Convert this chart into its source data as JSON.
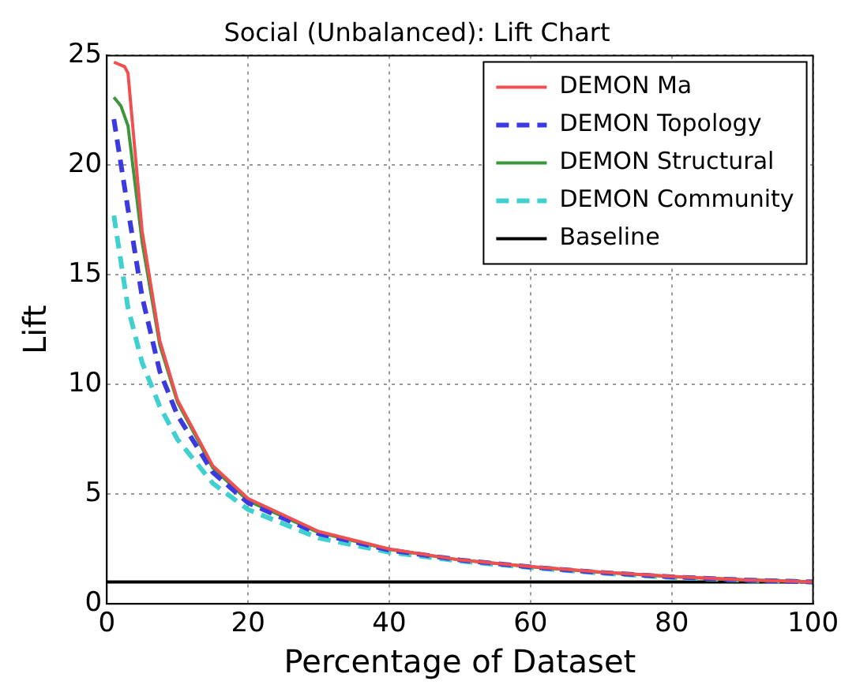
{
  "chart_data": {
    "type": "line",
    "title": "Social (Unbalanced): Lift Chart",
    "xlabel": "Percentage of Dataset",
    "ylabel": "Lift",
    "xlim": [
      0,
      100
    ],
    "xticks": [
      0,
      20,
      40,
      60,
      80,
      100
    ],
    "ylim": [
      0,
      25
    ],
    "yticks": [
      0,
      5,
      10,
      15,
      20,
      25
    ],
    "grid": true,
    "legend": "top right",
    "marker": "none",
    "series": [
      {
        "name": "DEMON Ma",
        "color": "#f05050",
        "line_style": "solid",
        "x": [
          1,
          2.5,
          3,
          5,
          7.5,
          10,
          15,
          20,
          30,
          40,
          50,
          60,
          70,
          80,
          90,
          100
        ],
        "values": [
          24.7,
          24.5,
          24.2,
          17,
          12,
          9.3,
          6.3,
          4.8,
          3.3,
          2.5,
          2.0,
          1.7,
          1.45,
          1.25,
          1.1,
          1.0
        ]
      },
      {
        "name": "DEMON Topology",
        "color": "#3a3ae0",
        "line_style": "dashed",
        "x": [
          1,
          3,
          5,
          7.5,
          10,
          15,
          20,
          30,
          40,
          50,
          60,
          70,
          80,
          90,
          100
        ],
        "values": [
          22.1,
          18,
          14,
          10.6,
          8.6,
          6.0,
          4.6,
          3.2,
          2.45,
          2.0,
          1.68,
          1.43,
          1.23,
          1.09,
          1.0
        ]
      },
      {
        "name": "DEMON Structural",
        "color": "#3c963c",
        "line_style": "solid",
        "x": [
          1,
          2,
          3,
          5,
          7.5,
          10,
          15,
          20,
          30,
          40,
          50,
          60,
          70,
          80,
          90,
          100
        ],
        "values": [
          23.1,
          22.7,
          21.8,
          16.5,
          11.8,
          9.2,
          6.2,
          4.7,
          3.25,
          2.48,
          2.0,
          1.69,
          1.44,
          1.24,
          1.1,
          1.0
        ]
      },
      {
        "name": "DEMON Community",
        "color": "#40d0d0",
        "line_style": "dashed",
        "x": [
          1,
          3,
          5,
          7.5,
          10,
          15,
          20,
          30,
          40,
          50,
          60,
          70,
          80,
          90,
          100
        ],
        "values": [
          17.7,
          13.5,
          11,
          9,
          7.5,
          5.5,
          4.3,
          3.0,
          2.35,
          1.95,
          1.65,
          1.4,
          1.2,
          1.08,
          1.0
        ]
      },
      {
        "name": "Baseline",
        "color": "#000000",
        "line_style": "solid",
        "x": [
          0,
          100
        ],
        "values": [
          1,
          1
        ]
      }
    ]
  }
}
